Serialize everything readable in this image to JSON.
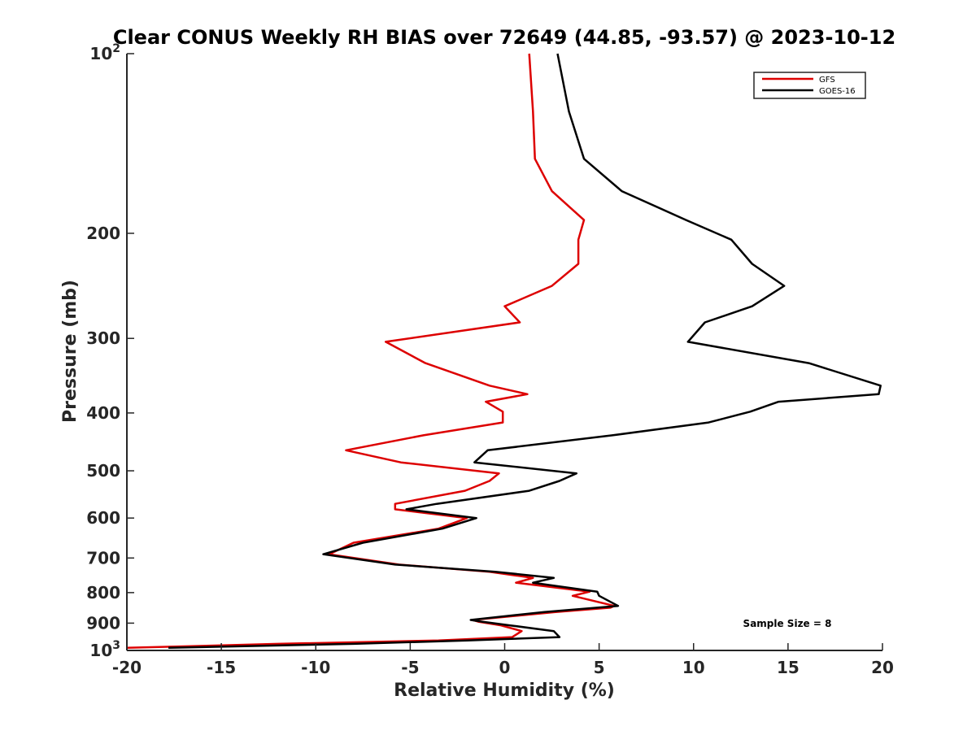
{
  "chart_data": {
    "type": "line",
    "title": "Clear CONUS Weekly RH BIAS over 72649 (44.85, -93.57) @ 2023-10-12",
    "xlabel": "Relative Humidity (%)",
    "ylabel": "Pressure (mb)",
    "xlim": [
      -20,
      20
    ],
    "ylim": [
      100,
      1000
    ],
    "y_scale": "log",
    "y_reversed": true,
    "grid": false,
    "legend_position": "top-right",
    "x_ticks": [
      "-20",
      "-15",
      "-10",
      "-5",
      "0",
      "5",
      "10",
      "15",
      "20"
    ],
    "y_ticks": [
      {
        "value": 100,
        "base": "10",
        "exp": "2"
      },
      {
        "value": 200,
        "label": "200"
      },
      {
        "value": 300,
        "label": "300"
      },
      {
        "value": 400,
        "label": "400"
      },
      {
        "value": 500,
        "label": "500"
      },
      {
        "value": 600,
        "label": "600"
      },
      {
        "value": 700,
        "label": "700"
      },
      {
        "value": 800,
        "label": "800"
      },
      {
        "value": 900,
        "label": "900"
      },
      {
        "value": 1000,
        "base": "10",
        "exp": "3"
      }
    ],
    "annotation": "Sample Size = 8",
    "series": [
      {
        "name": "GFS",
        "color": "#dd0000",
        "points": [
          [
            1.3,
            100
          ],
          [
            1.5,
            125
          ],
          [
            1.6,
            150
          ],
          [
            2.5,
            170
          ],
          [
            4.2,
            190
          ],
          [
            3.9,
            205
          ],
          [
            3.9,
            225
          ],
          [
            2.5,
            245
          ],
          [
            0.0,
            265
          ],
          [
            0.8,
            282
          ],
          [
            -6.3,
            304
          ],
          [
            -4.2,
            330
          ],
          [
            -0.8,
            360
          ],
          [
            1.2,
            372
          ],
          [
            -1.0,
            383
          ],
          [
            -0.1,
            398
          ],
          [
            -0.1,
            415
          ],
          [
            -4.3,
            436
          ],
          [
            -8.4,
            462
          ],
          [
            -5.5,
            484
          ],
          [
            -0.3,
            505
          ],
          [
            -0.8,
            520
          ],
          [
            -2.1,
            540
          ],
          [
            -5.8,
            568
          ],
          [
            -5.8,
            580
          ],
          [
            -2.0,
            600
          ],
          [
            -3.5,
            625
          ],
          [
            -8.0,
            660
          ],
          [
            -9.3,
            690
          ],
          [
            -5.6,
            718
          ],
          [
            -0.8,
            738
          ],
          [
            1.5,
            756
          ],
          [
            0.6,
            770
          ],
          [
            4.5,
            797
          ],
          [
            3.6,
            810
          ],
          [
            5.8,
            842
          ],
          [
            5.6,
            848
          ],
          [
            2.7,
            862
          ],
          [
            -1.7,
            889
          ],
          [
            -1.4,
            895
          ],
          [
            -0.2,
            908
          ],
          [
            0.9,
            928
          ],
          [
            0.4,
            950
          ],
          [
            -3.5,
            962
          ],
          [
            -12.0,
            975
          ],
          [
            -20.0,
            990
          ]
        ]
      },
      {
        "name": "GOES-16",
        "color": "#000000",
        "points": [
          [
            2.8,
            100
          ],
          [
            3.4,
            125
          ],
          [
            4.2,
            150
          ],
          [
            6.2,
            170
          ],
          [
            9.6,
            190
          ],
          [
            12.0,
            205
          ],
          [
            13.1,
            225
          ],
          [
            14.8,
            245
          ],
          [
            13.1,
            265
          ],
          [
            10.6,
            282
          ],
          [
            9.7,
            304
          ],
          [
            16.1,
            330
          ],
          [
            19.9,
            360
          ],
          [
            19.8,
            372
          ],
          [
            14.5,
            383
          ],
          [
            13.0,
            398
          ],
          [
            10.8,
            415
          ],
          [
            5.7,
            436
          ],
          [
            -0.9,
            462
          ],
          [
            -1.6,
            484
          ],
          [
            3.8,
            505
          ],
          [
            2.9,
            520
          ],
          [
            1.3,
            540
          ],
          [
            -3.6,
            568
          ],
          [
            -5.2,
            580
          ],
          [
            -1.5,
            600
          ],
          [
            -3.3,
            625
          ],
          [
            -7.5,
            660
          ],
          [
            -9.6,
            690
          ],
          [
            -5.8,
            718
          ],
          [
            -0.5,
            738
          ],
          [
            2.6,
            756
          ],
          [
            1.5,
            770
          ],
          [
            4.9,
            797
          ],
          [
            5.0,
            810
          ],
          [
            6.0,
            842
          ],
          [
            2.1,
            862
          ],
          [
            -1.8,
            889
          ],
          [
            -1.2,
            895
          ],
          [
            0.3,
            908
          ],
          [
            2.6,
            928
          ],
          [
            2.9,
            950
          ],
          [
            -2.0,
            962
          ],
          [
            -8.0,
            975
          ],
          [
            -17.8,
            990
          ]
        ]
      }
    ]
  }
}
